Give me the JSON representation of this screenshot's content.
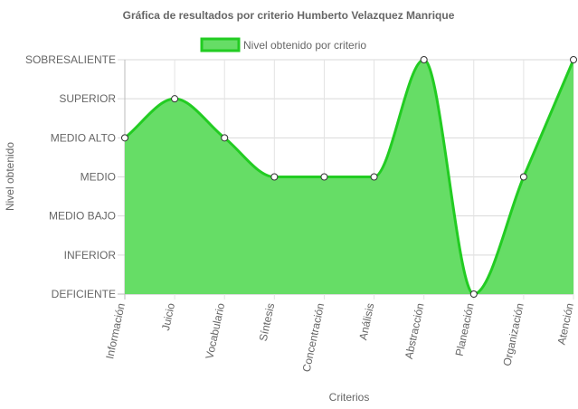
{
  "chart_data": {
    "type": "line",
    "title": "Gráfica de resultados por criterio Humberto  Velazquez Manrique",
    "xlabel": "Criterios",
    "ylabel": "Nivel obtenido",
    "legend_position": "top",
    "grid": true,
    "categories": [
      "Información",
      "Juicio",
      "Vocabulario",
      "Síntesis",
      "Concentración",
      "Análisis",
      "Abstracción",
      "Planeación",
      "Organización",
      "Atención"
    ],
    "y_levels": [
      "DEFICIENTE",
      "INFERIOR",
      "MEDIO BAJO",
      "MEDIO",
      "MEDIO ALTO",
      "SUPERIOR",
      "SOBRESALIENTE"
    ],
    "ylim": [
      0,
      6
    ],
    "series": [
      {
        "name": "Nivel obtenido por criterio",
        "values": [
          4,
          5,
          4,
          3,
          3,
          3,
          6,
          0,
          3,
          6
        ],
        "fill_color": "#66dd66",
        "line_color": "#22cc22"
      }
    ]
  }
}
